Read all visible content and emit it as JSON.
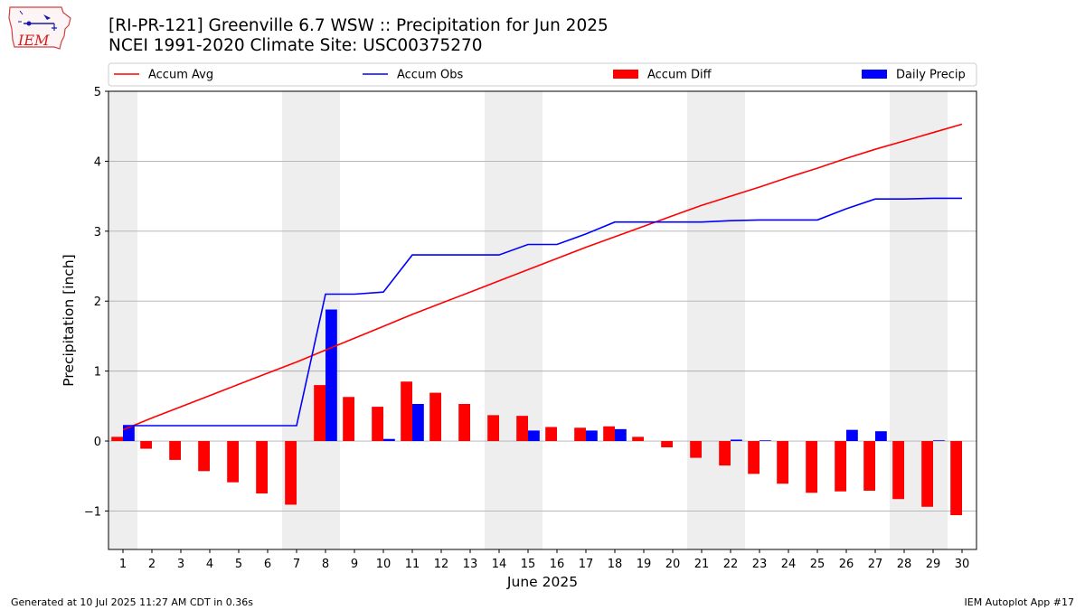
{
  "header": {
    "title_line1": "[RI-PR-121] Greenville 6.7 WSW :: Precipitation for Jun 2025",
    "title_line2": "NCEI 1991-2020 Climate Site: USC00375270",
    "logo_text": "IEM",
    "logo_icon": "iem-iowa-state-logo"
  },
  "footer": {
    "left": "Generated at 10 Jul 2025 11:27 AM CDT in 0.36s",
    "right": "IEM Autoplot App #17"
  },
  "chart_data": {
    "type": "bar",
    "xlabel": "June 2025",
    "ylabel": "Precipitation [inch]",
    "xlim": [
      0.5,
      30.5
    ],
    "ylim": [
      -1.55,
      5.0
    ],
    "yticks": [
      -1,
      0,
      1,
      2,
      3,
      4,
      5
    ],
    "ytick_labels": [
      "−1",
      "0",
      "1",
      "2",
      "3",
      "4",
      "5"
    ],
    "grid": "horizontal",
    "legend_position": "top",
    "categories": [
      "1",
      "2",
      "3",
      "4",
      "5",
      "6",
      "7",
      "8",
      "9",
      "10",
      "11",
      "12",
      "13",
      "14",
      "15",
      "16",
      "17",
      "18",
      "19",
      "20",
      "21",
      "22",
      "23",
      "24",
      "25",
      "26",
      "27",
      "28",
      "29",
      "30"
    ],
    "weekend_spans": [
      [
        0.5,
        1.5
      ],
      [
        6.5,
        8.5
      ],
      [
        13.5,
        15.5
      ],
      [
        20.5,
        22.5
      ],
      [
        27.5,
        29.5
      ]
    ],
    "colors": {
      "accum_avg": "#ff0000",
      "accum_obs": "#0000ff",
      "accum_diff": "#ff0000",
      "daily_precip": "#0000ff",
      "weekend_shade": "#eeeeee",
      "grid": "#b0b0b0"
    },
    "series": [
      {
        "name": "Accum Avg",
        "kind": "line",
        "values": [
          0.16,
          0.33,
          0.49,
          0.65,
          0.81,
          0.97,
          1.13,
          1.3,
          1.47,
          1.64,
          1.81,
          1.97,
          2.13,
          2.29,
          2.45,
          2.61,
          2.77,
          2.92,
          3.07,
          3.22,
          3.37,
          3.5,
          3.63,
          3.77,
          3.9,
          4.04,
          4.17,
          4.29,
          4.41,
          4.53
        ]
      },
      {
        "name": "Accum Obs",
        "kind": "line",
        "values": [
          0.22,
          0.22,
          0.22,
          0.22,
          0.22,
          0.22,
          0.22,
          2.1,
          2.1,
          2.13,
          2.66,
          2.66,
          2.66,
          2.66,
          2.81,
          2.81,
          2.96,
          3.13,
          3.13,
          3.13,
          3.13,
          3.15,
          3.16,
          3.16,
          3.16,
          3.32,
          3.46,
          3.46,
          3.47,
          3.47
        ]
      },
      {
        "name": "Accum Diff",
        "kind": "bar",
        "values": [
          0.06,
          -0.11,
          -0.27,
          -0.43,
          -0.59,
          -0.75,
          -0.91,
          0.8,
          0.63,
          0.49,
          0.85,
          0.69,
          0.53,
          0.37,
          0.36,
          0.2,
          0.19,
          0.21,
          0.06,
          -0.09,
          -0.24,
          -0.35,
          -0.47,
          -0.61,
          -0.74,
          -0.72,
          -0.71,
          -0.83,
          -0.94,
          -1.06
        ]
      },
      {
        "name": "Daily Precip",
        "kind": "bar",
        "values": [
          0.22,
          0,
          0,
          0,
          0,
          0,
          0,
          1.88,
          0,
          0.03,
          0.53,
          0,
          0,
          0,
          0.15,
          0,
          0.15,
          0.17,
          0,
          0,
          0,
          0.02,
          0.01,
          0,
          0,
          0.16,
          0.14,
          0,
          0.01,
          0
        ]
      }
    ]
  }
}
